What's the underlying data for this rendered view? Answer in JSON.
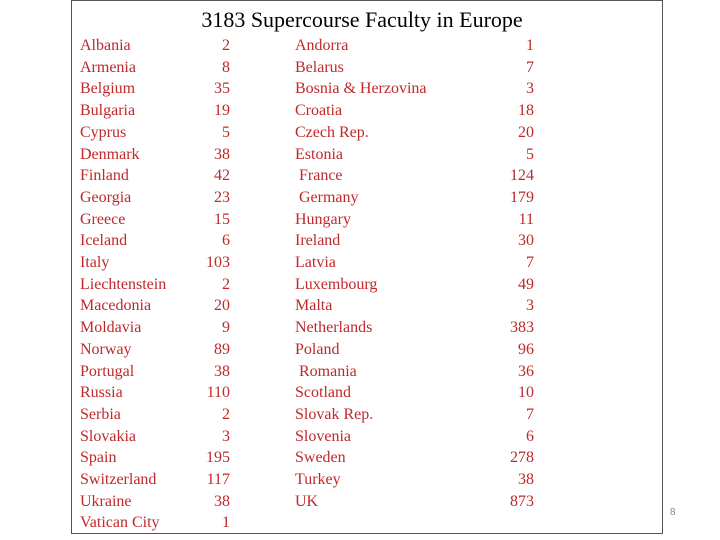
{
  "slide": {
    "title": "3183 Supercourse Faculty in Europe",
    "page_number": "8",
    "text_color": "#c0282a"
  },
  "left_column": [
    {
      "country": "Albania",
      "count": "2"
    },
    {
      "country": "Armenia",
      "count": "8"
    },
    {
      "country": "Belgium",
      "count": "35"
    },
    {
      "country": "Bulgaria",
      "count": "19"
    },
    {
      "country": "Cyprus",
      "count": "5"
    },
    {
      "country": "Denmark",
      "count": "38"
    },
    {
      "country": "Finland",
      "count": "42"
    },
    {
      "country": "Georgia",
      "count": "23"
    },
    {
      "country": "Greece",
      "count": "15"
    },
    {
      "country": "Iceland",
      "count": "6"
    },
    {
      "country": "Italy",
      "count": "103"
    },
    {
      "country": "Liechtenstein",
      "count": "2"
    },
    {
      "country": "Macedonia",
      "count": "20"
    },
    {
      "country": "Moldavia",
      "count": "9"
    },
    {
      "country": "Norway",
      "count": "89"
    },
    {
      "country": "Portugal",
      "count": "38"
    },
    {
      "country": "Russia",
      "count": "110"
    },
    {
      "country": "Serbia",
      "count": "2"
    },
    {
      "country": "Slovakia",
      "count": "3"
    },
    {
      "country": "Spain",
      "count": "195"
    },
    {
      "country": "Switzerland",
      "count": "117"
    },
    {
      "country": "Ukraine",
      "count": "38"
    },
    {
      "country": "Vatican City",
      "count": "1"
    }
  ],
  "right_column": [
    {
      "country": "Andorra",
      "count": "1"
    },
    {
      "country": "Belarus",
      "count": "7"
    },
    {
      "country": "Bosnia & Herzovina",
      "count": "3"
    },
    {
      "country": "Croatia",
      "count": "18"
    },
    {
      "country": "Czech Rep.",
      "count": "20"
    },
    {
      "country": "Estonia",
      "count": "5"
    },
    {
      "country": "France",
      "count": "124"
    },
    {
      "country": "Germany",
      "count": "179"
    },
    {
      "country": "Hungary",
      "count": "11"
    },
    {
      "country": "Ireland",
      "count": "30"
    },
    {
      "country": "Latvia",
      "count": "7"
    },
    {
      "country": "Luxembourg",
      "count": "49"
    },
    {
      "country": "Malta",
      "count": "3"
    },
    {
      "country": "Netherlands",
      "count": "383"
    },
    {
      "country": "Poland",
      "count": "96"
    },
    {
      "country": "Romania",
      "count": "36"
    },
    {
      "country": "Scotland",
      "count": "10"
    },
    {
      "country": "Slovak Rep.",
      "count": "7"
    },
    {
      "country": "Slovenia",
      "count": "6"
    },
    {
      "country": "Sweden",
      "count": "278"
    },
    {
      "country": "Turkey",
      "count": "38"
    },
    {
      "country": "UK",
      "count": "873"
    }
  ]
}
